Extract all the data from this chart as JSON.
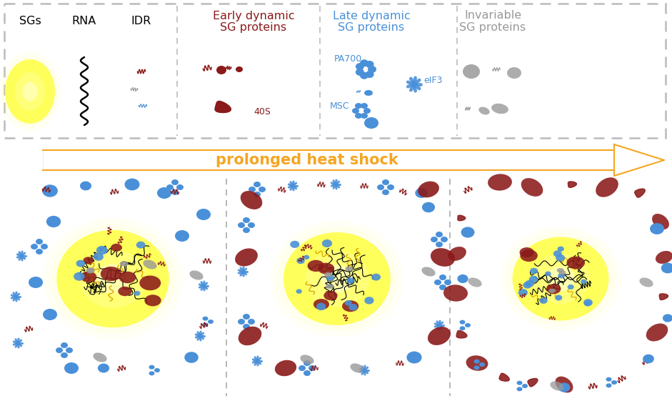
{
  "bg_color": "#ffffff",
  "arrow_color": "#F5A623",
  "arrow_text": "prolonged heat shock",
  "arrow_text_color": "#F5A623",
  "red_color": "#8B1A1A",
  "blue_color": "#4A90D9",
  "gray_color": "#999999",
  "black_color": "#111111",
  "label_40S": "40S",
  "label_PA700": "PA700",
  "label_MSC": "MSC",
  "label_eIF3": "eIF3"
}
